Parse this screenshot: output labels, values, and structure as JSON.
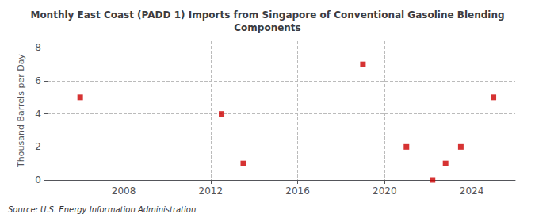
{
  "chart_data": {
    "type": "scatter",
    "title": "Monthly East Coast (PADD 1) Imports from Singapore of Conventional Gasoline Blending\nComponents",
    "ylabel": "Thousand Barrels per Day",
    "annotation": "Source: U.S. Energy Information Administration",
    "x": [
      2006.0,
      2012.5,
      2013.5,
      2019.0,
      2021.0,
      2022.2,
      2022.8,
      2023.5,
      2025.0
    ],
    "values": [
      5,
      4,
      1,
      7,
      2,
      0,
      1,
      2,
      5
    ],
    "color": "#cc0000",
    "marker": "square",
    "xlim": [
      2004.5,
      2026.0
    ],
    "xticks": [
      2008,
      2012,
      2016,
      2020,
      2024
    ],
    "ylim": [
      0,
      8.4
    ],
    "yticks": [
      0,
      2,
      4,
      6,
      8
    ],
    "grid": true
  }
}
